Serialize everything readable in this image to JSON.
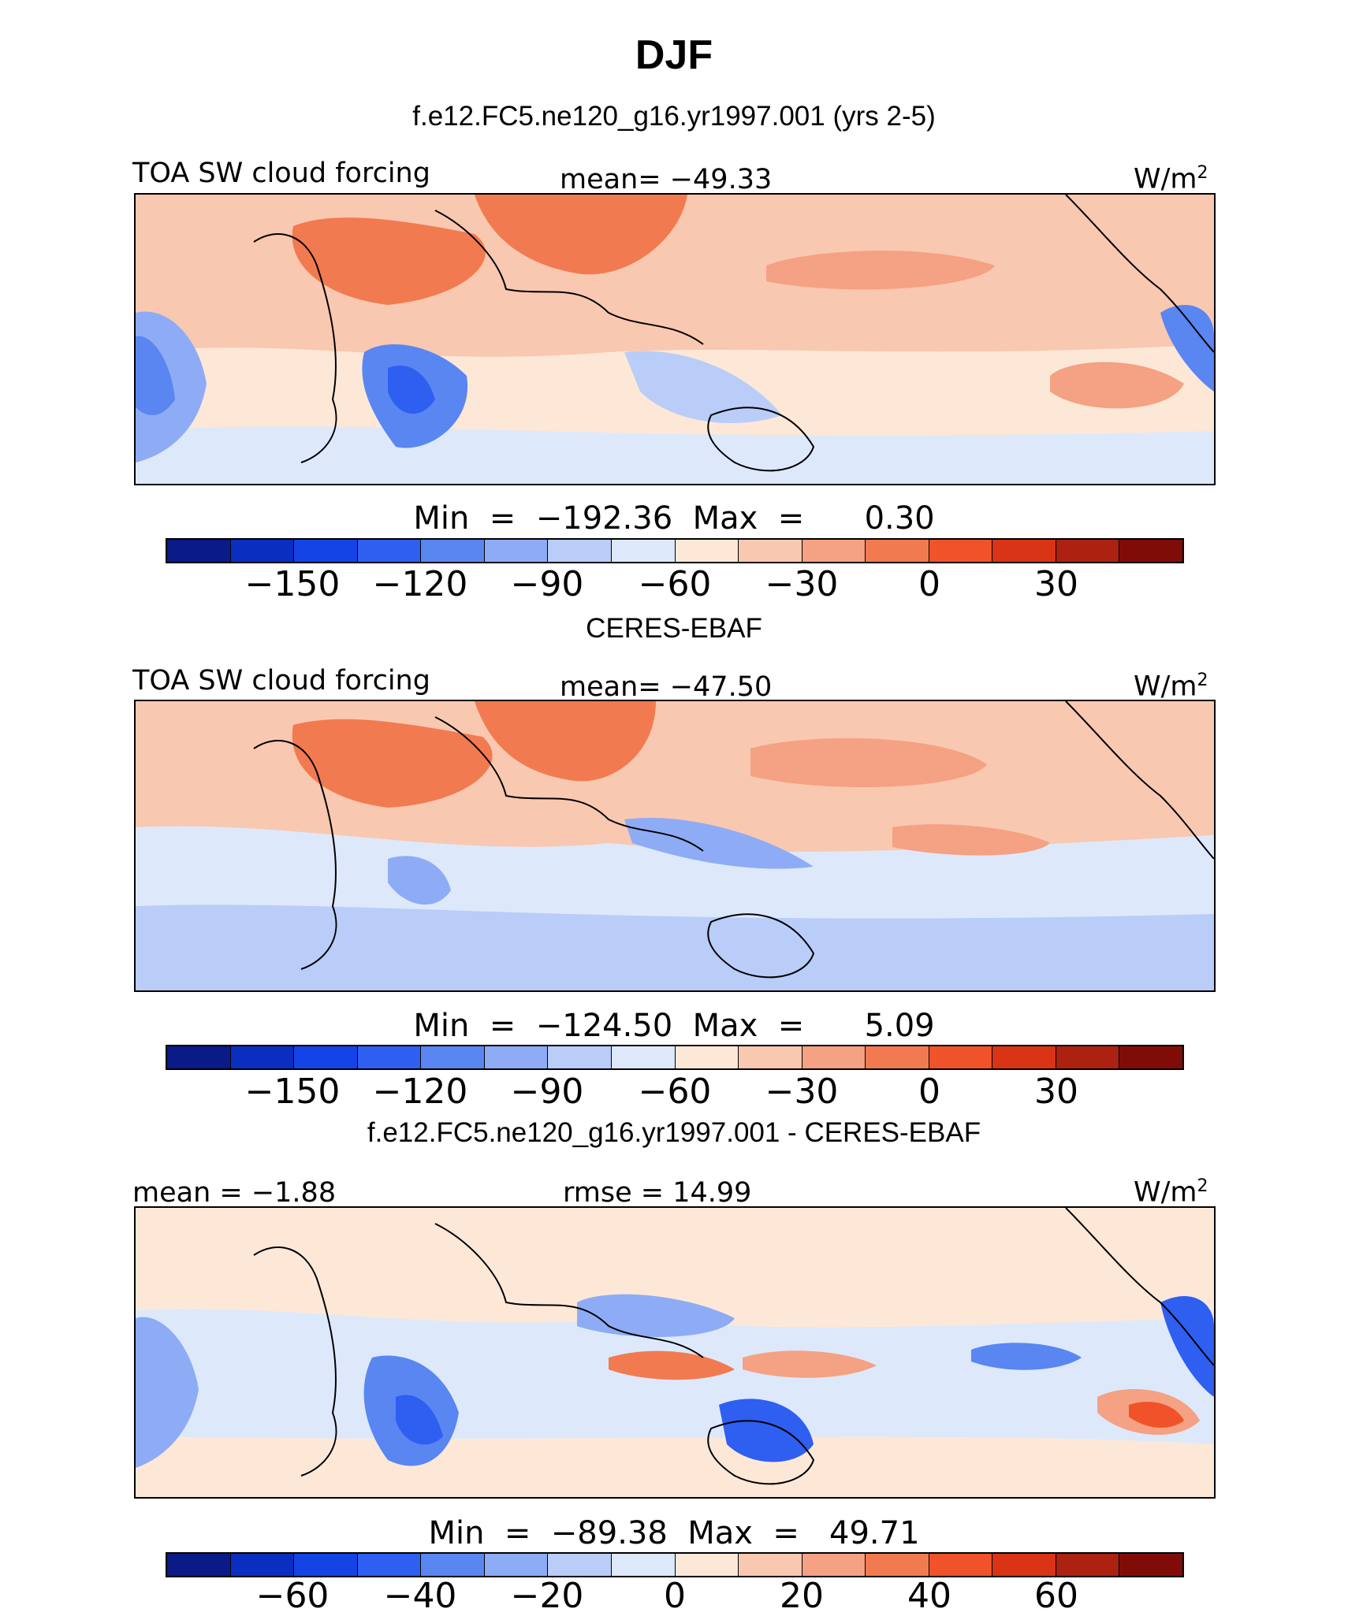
{
  "title": "DJF",
  "palette": [
    "#0a1a87",
    "#0a2ec0",
    "#1443e6",
    "#2e5ff0",
    "#5a86f2",
    "#8eacf5",
    "#b9cdf8",
    "#dde9fb",
    "#fde8d8",
    "#f9c8b0",
    "#f5a183",
    "#f27a50",
    "#f0532a",
    "#d83415",
    "#ad2110",
    "#800c08"
  ],
  "panels": [
    {
      "heading": "f.e12.FC5.ne120_g16.yr1997.001 (yrs 2-5)",
      "left_label": "TOA SW cloud forcing",
      "center_label": "mean= −49.33",
      "unit": "W/m",
      "unit_sup": "2",
      "minmax": "Min  =  −192.36  Max  =      0.30",
      "ticks": [
        "−150",
        "−120",
        "−90",
        "−60",
        "−30",
        "0",
        "30"
      ]
    },
    {
      "heading": "CERES-EBAF",
      "left_label": "TOA SW cloud forcing",
      "center_label": "mean= −47.50",
      "unit": "W/m",
      "unit_sup": "2",
      "minmax": "Min  =  −124.50  Max  =      5.09",
      "ticks": [
        "−150",
        "−120",
        "−90",
        "−60",
        "−30",
        "0",
        "30"
      ]
    },
    {
      "heading": "f.e12.FC5.ne120_g16.yr1997.001 - CERES-EBAF",
      "left_label": "mean =  −1.88",
      "center_label": "rmse =   14.99",
      "unit": "W/m",
      "unit_sup": "2",
      "minmax": "Min  =  −89.38  Max  =   49.71",
      "ticks": [
        "−60",
        "−40",
        "−20",
        "0",
        "20",
        "40",
        "60"
      ]
    }
  ]
}
